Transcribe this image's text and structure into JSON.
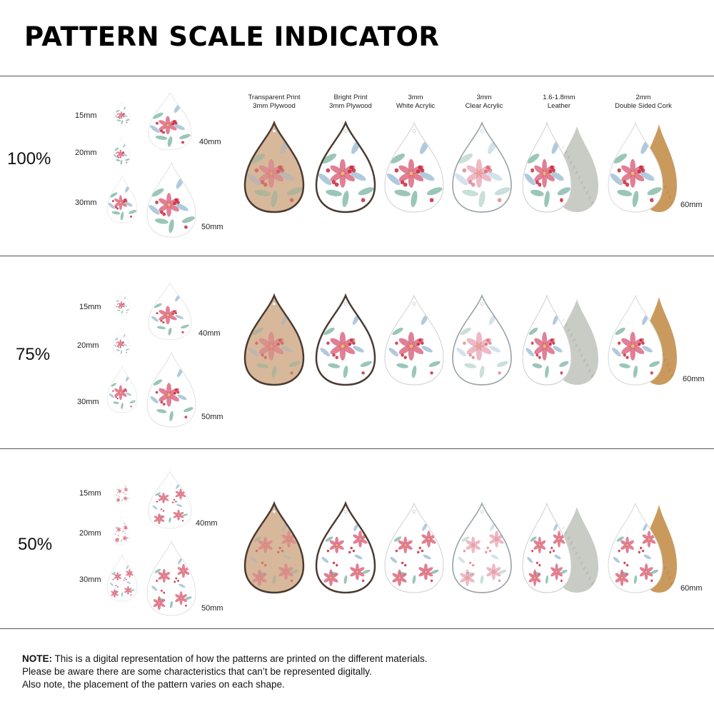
{
  "title": "PATTERN SCALE INDICATOR",
  "materials": [
    {
      "line1": "Transparent Print",
      "line2": "3mm Plywood"
    },
    {
      "line1": "Bright Print",
      "line2": "3mm Plywood"
    },
    {
      "line1": "3mm",
      "line2": "White Acrylic"
    },
    {
      "line1": "3mm",
      "line2": "Clear Acrylic"
    },
    {
      "line1": "1.6-1.8mm",
      "line2": "Leather"
    },
    {
      "line1": "2mm",
      "line2": "Double Sided Cork"
    }
  ],
  "scales": [
    {
      "label": "100%",
      "size_15": "15mm",
      "size_20": "20mm",
      "size_30": "30mm",
      "size_40": "40mm",
      "size_50": "50mm",
      "size_60": "60mm"
    },
    {
      "label": "75%",
      "size_15": "15mm",
      "size_20": "20mm",
      "size_30": "30mm",
      "size_40": "40mm",
      "size_50": "50mm",
      "size_60": "60mm"
    },
    {
      "label": "50%",
      "size_15": "15mm",
      "size_20": "20mm",
      "size_30": "30mm",
      "size_40": "40mm",
      "size_50": "50mm",
      "size_60": "60mm"
    }
  ],
  "note": {
    "prefix": "NOTE:",
    "line1": " This is a digital representation of how the patterns are printed on the different materials.",
    "line2": "Please be aware there are some characteristics that can’t be represented digitally.",
    "line3": "Also note, the placement of the pattern varies on each shape."
  },
  "colors": {
    "poinsettia": "#d9607a",
    "berry": "#c8283a",
    "leaf": "#6fae9a",
    "leaf_blue": "#8fb4cf",
    "plywood": "#d8b89a",
    "plywood_edge": "#4a3a30",
    "leather_back": "#c9ccc4",
    "cork": "#c99a5c"
  },
  "icons": [
    "teardrop-earring-icon"
  ]
}
